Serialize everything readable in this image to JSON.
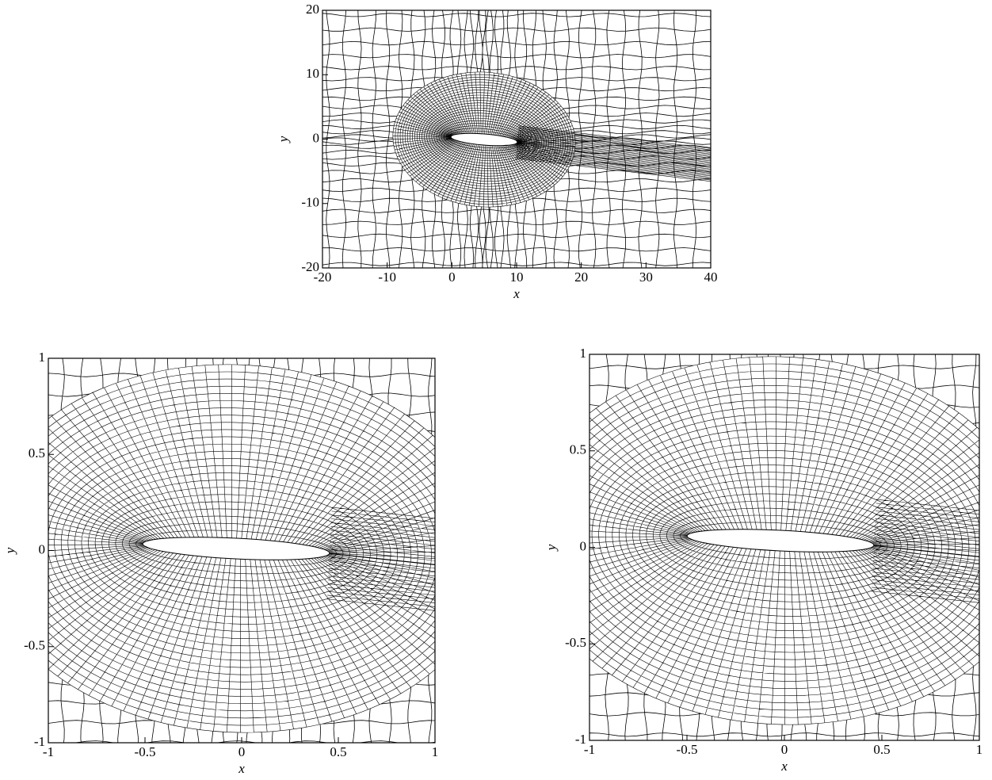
{
  "chart_data": [
    {
      "type": "mesh",
      "x_label": "x",
      "y_label": "y",
      "xlim": [
        -20,
        40
      ],
      "ylim": [
        -20,
        20
      ],
      "xticks": [
        -20,
        -10,
        0,
        10,
        20,
        30,
        40
      ],
      "yticks": [
        -20,
        -10,
        0,
        10,
        20
      ]
    },
    {
      "type": "mesh",
      "x_label": "x",
      "y_label": "y",
      "xlim": [
        -1,
        1
      ],
      "ylim": [
        -1,
        1
      ],
      "xticks": [
        -1,
        -0.5,
        0,
        0.5,
        1
      ],
      "yticks": [
        -1,
        -0.5,
        0,
        0.5,
        1
      ]
    },
    {
      "type": "mesh",
      "x_label": "x",
      "y_label": "y",
      "xlim": [
        -1,
        1
      ],
      "ylim": [
        -1,
        1
      ],
      "xticks": [
        -1,
        -0.5,
        0,
        0.5,
        1
      ],
      "yticks": [
        -1,
        -0.5,
        0,
        0.5,
        1
      ]
    }
  ]
}
